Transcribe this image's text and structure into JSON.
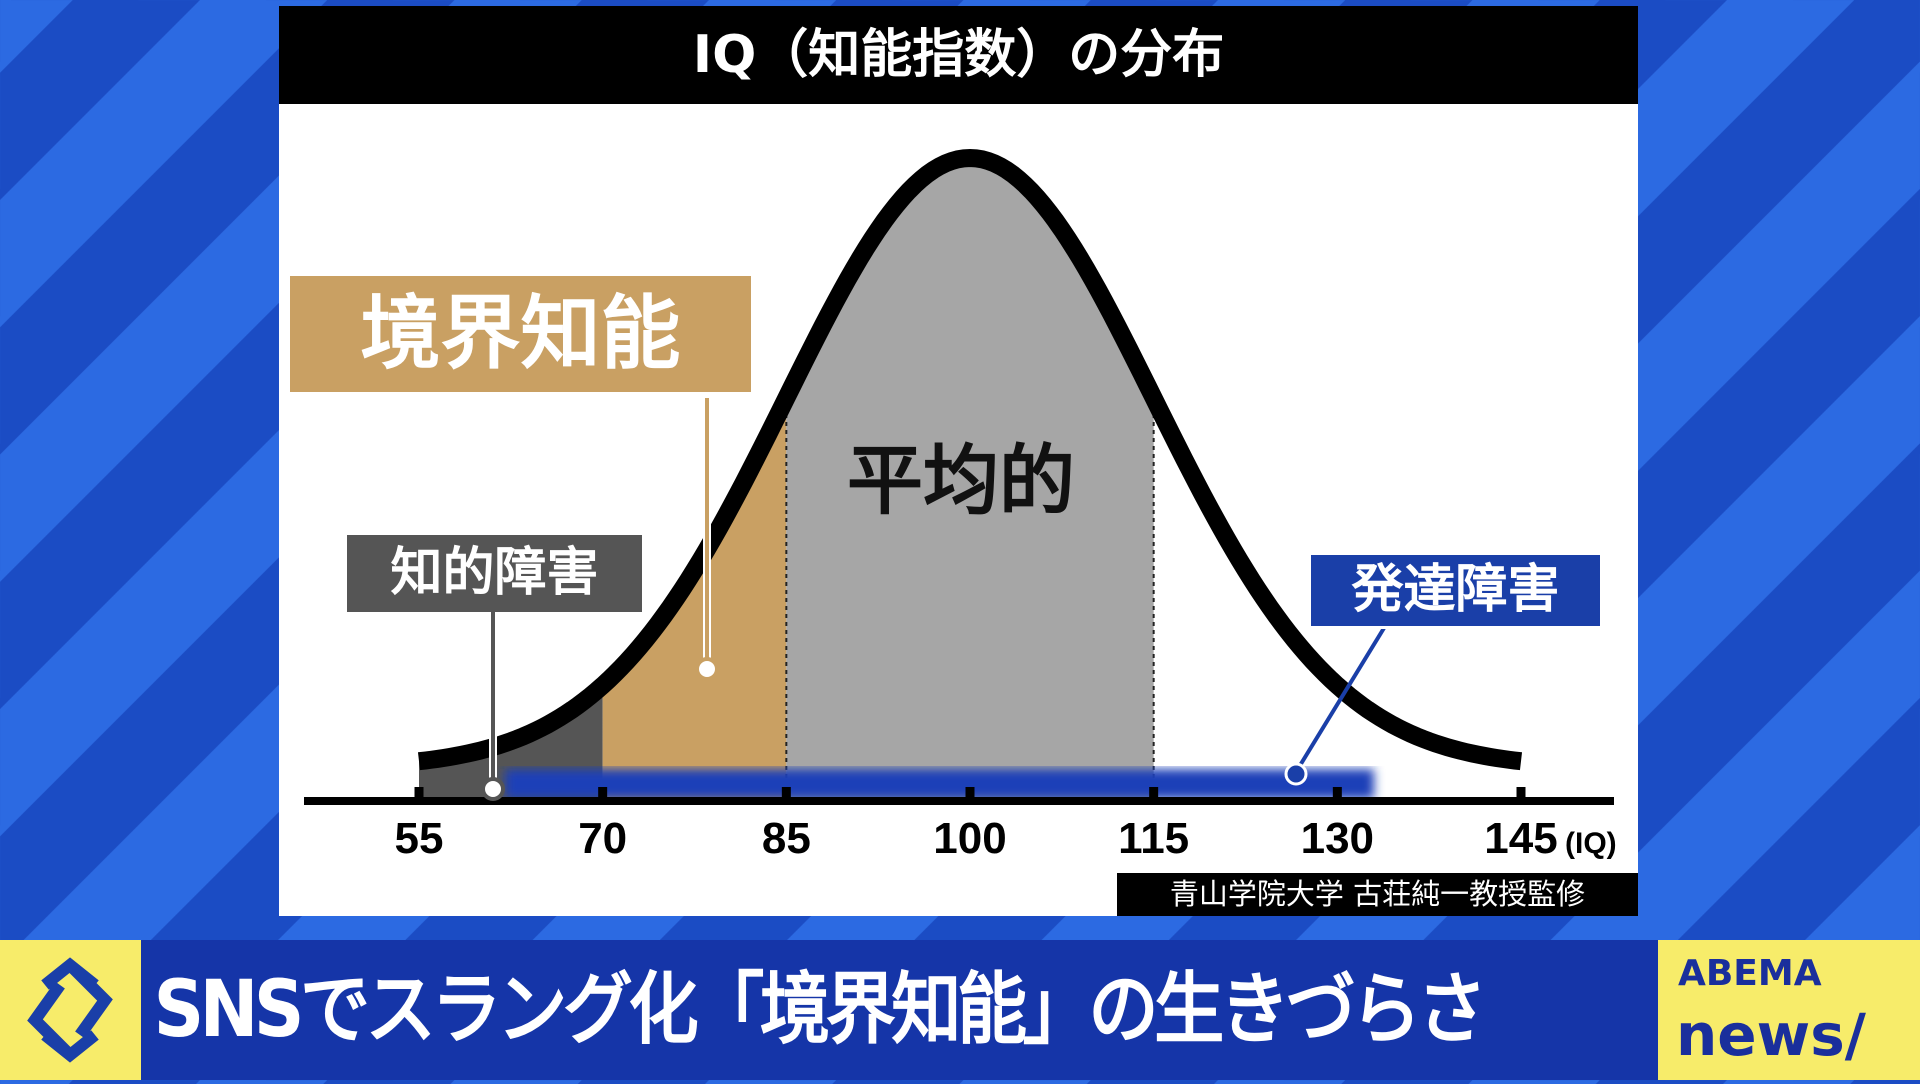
{
  "title": "IQ（知能指数）の分布",
  "chart_data": {
    "type": "area",
    "title": "IQ（知能指数）の分布",
    "x_unit": "(IQ)",
    "x_ticks": [
      55,
      70,
      85,
      100,
      115,
      130,
      145
    ],
    "xlim": [
      55,
      145
    ],
    "distribution": {
      "mean": 100,
      "sd": 15
    },
    "regions": [
      {
        "label": "知的障害",
        "from": 55,
        "to": 70,
        "color": "#555555"
      },
      {
        "label": "境界知能",
        "from": 70,
        "to": 85,
        "color": "#c9a063"
      },
      {
        "label": "平均的",
        "from": 85,
        "to": 115,
        "color": "#a6a6a6"
      }
    ],
    "band": {
      "label": "発達障害",
      "from": 62,
      "to": 133,
      "color": "#1a3fb8"
    }
  },
  "labels": {
    "borderline": "境界知能",
    "intellectual": "知的障害",
    "average": "平均的",
    "developmental": "発達障害"
  },
  "credit": "青山学院大学 古荘純一教授監修",
  "banner": {
    "headline": "SNSでスラング化「境界知能」の生きづらさ",
    "brand_top": "ABEMA",
    "brand_bottom": "news/"
  },
  "colors": {
    "tan": "#c9a063",
    "blue": "#1a3fa8",
    "yellow": "#f7ec6a"
  }
}
